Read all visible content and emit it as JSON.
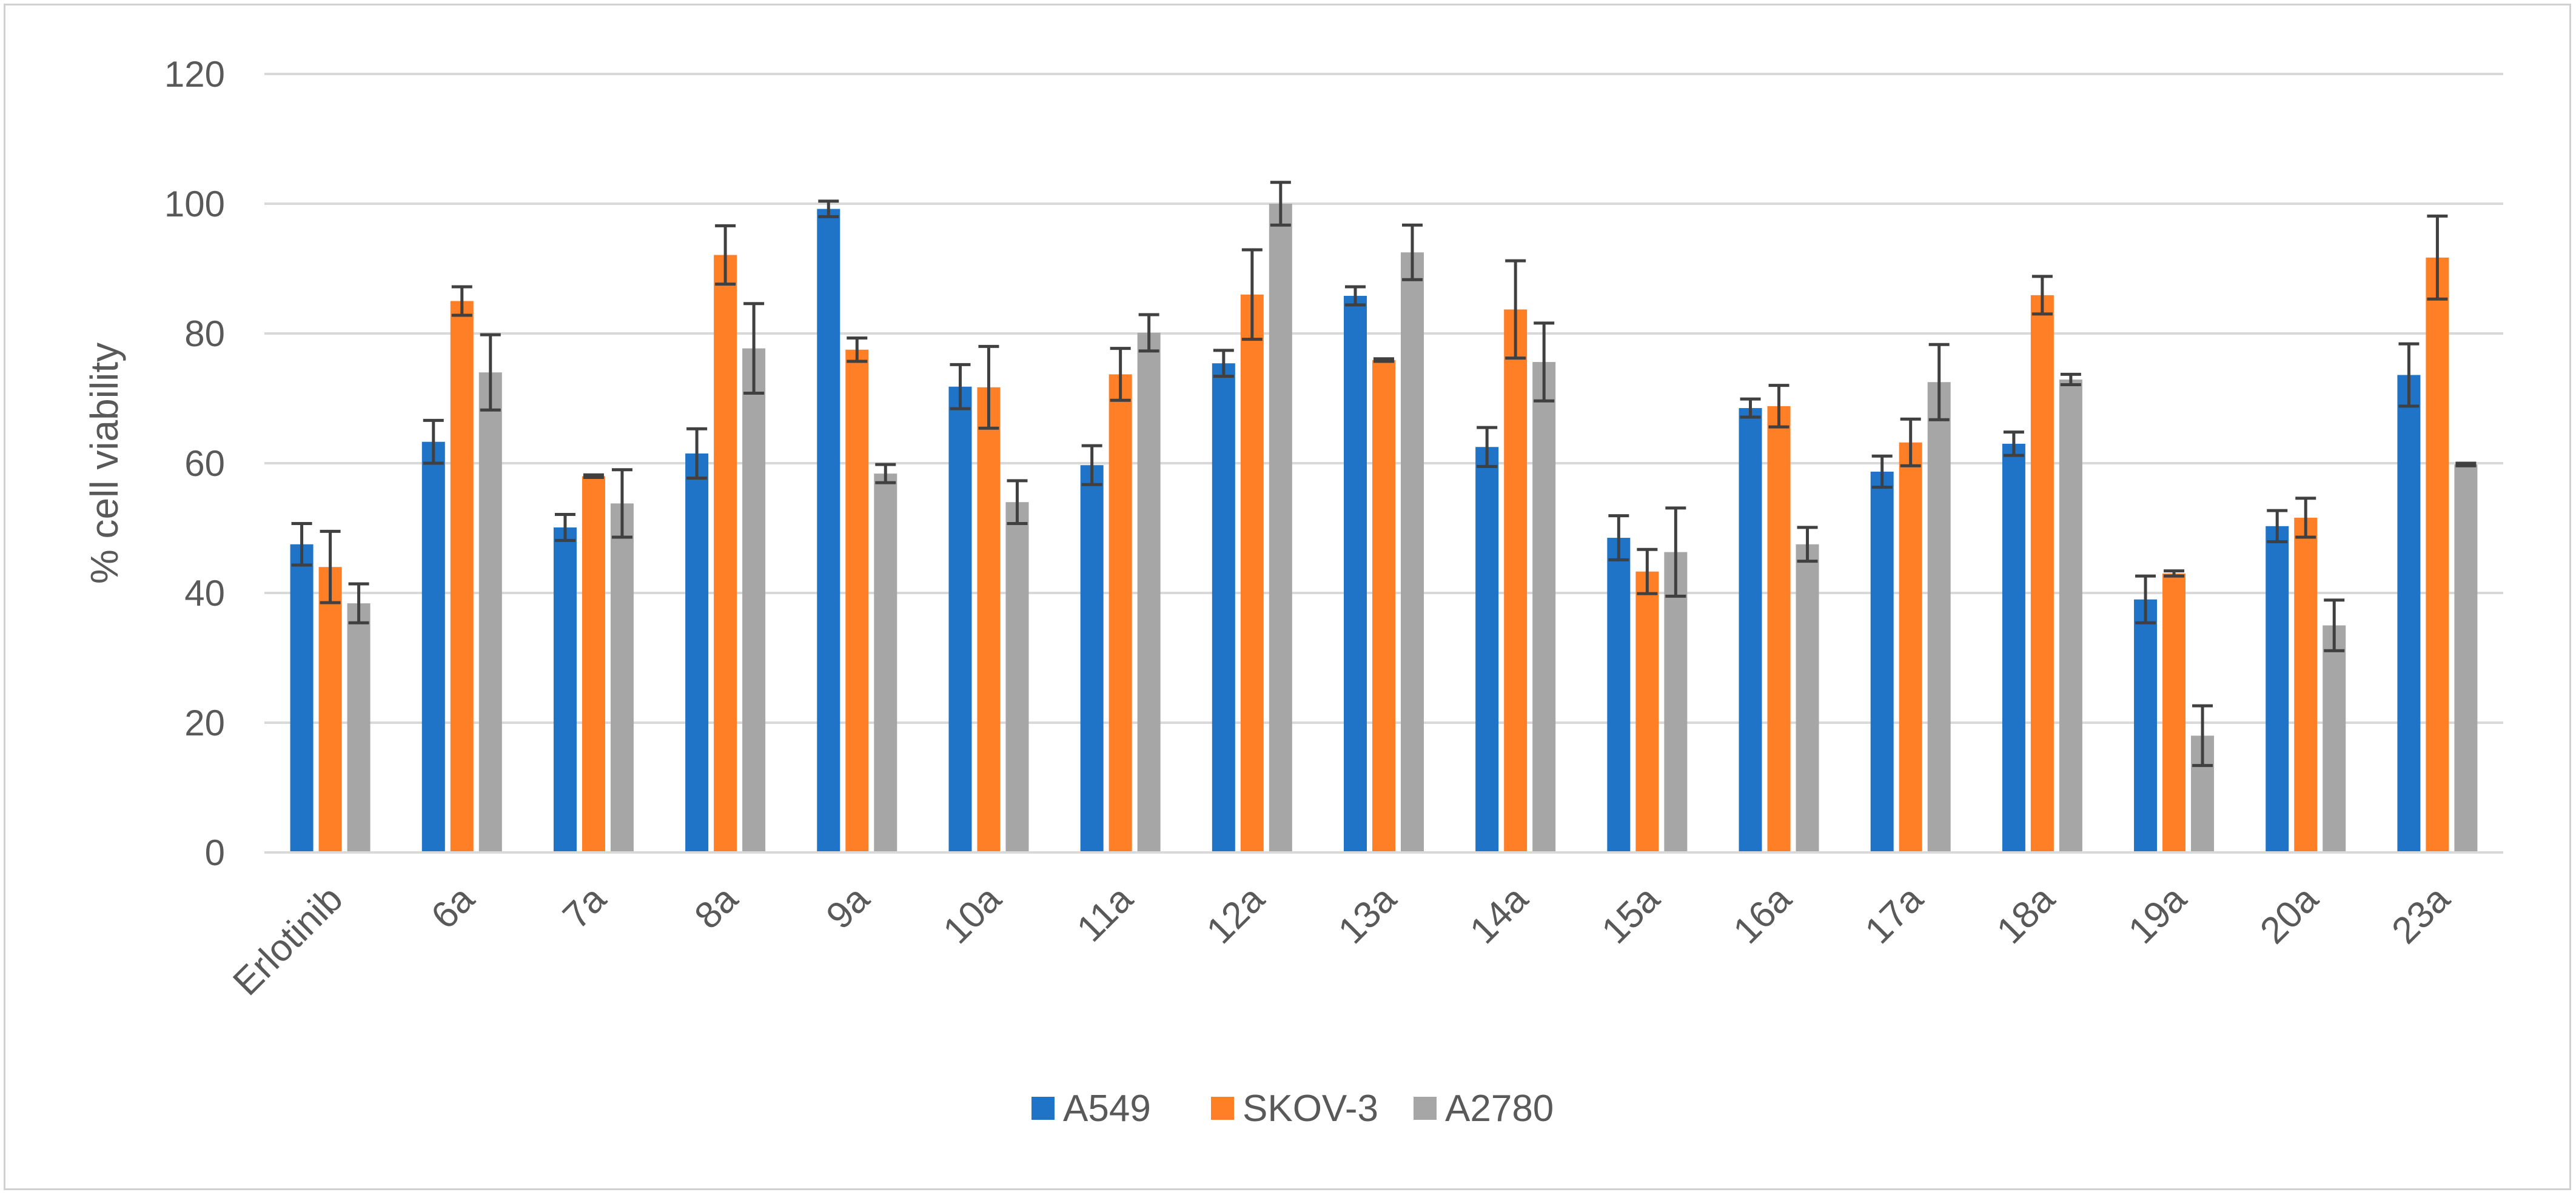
{
  "chart_data": {
    "type": "bar",
    "title": "",
    "xlabel": "",
    "ylabel": "% cell viability",
    "ylim": [
      0,
      120
    ],
    "yticks": [
      "0",
      "20",
      "40",
      "60",
      "80",
      "100",
      "120"
    ],
    "grid": true,
    "legend_position": "bottom",
    "categories": [
      "Erlotinib",
      "6a",
      "7a",
      "8a",
      "9a",
      "10a",
      "11a",
      "12a",
      "13a",
      "14a",
      "15a",
      "16a",
      "17a",
      "18a",
      "19a",
      "20a",
      "23a"
    ],
    "series": [
      {
        "name": "A549",
        "color": "#1f74c8",
        "values": [
          47.5,
          63.3,
          50.1,
          61.5,
          99.2,
          71.8,
          59.7,
          75.4,
          85.8,
          62.5,
          48.5,
          68.5,
          58.7,
          63.0,
          39.0,
          50.3,
          73.6
        ],
        "errors": [
          3.2,
          3.3,
          2.0,
          3.8,
          1.2,
          3.4,
          3.0,
          2.0,
          1.4,
          3.0,
          3.4,
          1.4,
          2.4,
          1.8,
          3.6,
          2.4,
          4.8
        ]
      },
      {
        "name": "SKOV-3",
        "color": "#ff7f27",
        "values": [
          44.0,
          85.0,
          58.0,
          92.1,
          77.5,
          71.7,
          73.7,
          86.0,
          75.9,
          83.7,
          43.3,
          68.8,
          63.2,
          85.9,
          43.0,
          51.6,
          91.7
        ],
        "errors": [
          5.5,
          2.2,
          0.2,
          4.5,
          1.8,
          6.3,
          4.0,
          6.9,
          0.2,
          7.5,
          3.4,
          3.2,
          3.6,
          2.9,
          0.4,
          3.0,
          6.4
        ]
      },
      {
        "name": "A2780",
        "color": "#a6a6a6",
        "values": [
          38.4,
          74.0,
          53.8,
          77.7,
          58.4,
          54.0,
          80.1,
          100.0,
          92.5,
          75.6,
          46.3,
          47.5,
          72.5,
          72.9,
          18.0,
          35.0,
          59.8
        ],
        "errors": [
          3.0,
          5.8,
          5.2,
          6.9,
          1.4,
          3.3,
          2.8,
          3.3,
          4.2,
          6.0,
          6.8,
          2.6,
          5.8,
          0.8,
          4.6,
          3.9,
          0.2
        ]
      }
    ]
  }
}
